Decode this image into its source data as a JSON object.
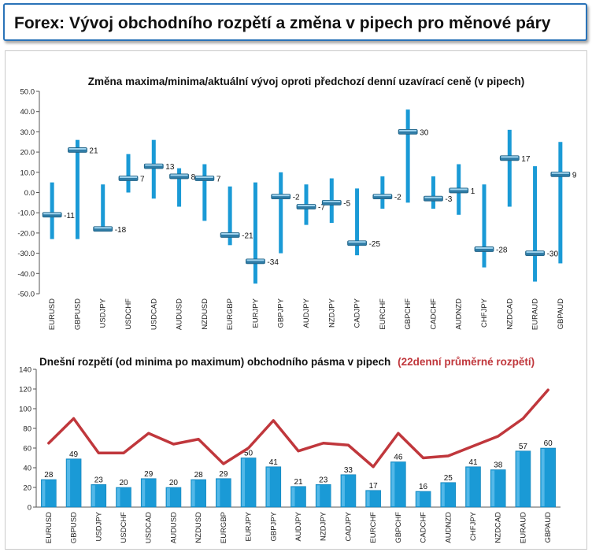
{
  "header": {
    "title": "Forex: Vývoj obchodního rozpětí a změna v pipech pro měnové páry"
  },
  "colors": {
    "bar": "#1a9ad6",
    "line": "#c0373c",
    "header_border": "#2a73b8"
  },
  "chart_data": [
    {
      "type": "range",
      "title": "Změna maxima/minima/aktuální vývoj oproti předchozí denní uzavírací ceně (v pipech)",
      "ylim": [
        -50,
        50
      ],
      "yticks": [
        "50.0",
        "40.0",
        "30.0",
        "20.0",
        "10.0",
        "0.0",
        "-10.0",
        "-20.0",
        "-30.0",
        "-40.0",
        "-50.0"
      ],
      "categories": [
        "EURUSD",
        "GBPUSD",
        "USDJPY",
        "USDCHF",
        "USDCAD",
        "AUDUSD",
        "NZDUSD",
        "EURGBP",
        "EURJPY",
        "GBPJPY",
        "AUDJPY",
        "NZDJPY",
        "CADJPY",
        "EURCHF",
        "GBPCHF",
        "CADCHF",
        "AUDNZD",
        "CHFJPY",
        "NZDCAD",
        "EURAUD",
        "GBPAUD"
      ],
      "high": [
        5,
        26,
        4,
        19,
        26,
        12,
        14,
        3,
        5,
        10,
        4,
        7,
        2,
        8,
        41,
        8,
        14,
        4,
        31,
        13,
        25
      ],
      "low": [
        -23,
        -23,
        -18,
        0,
        -3,
        -7,
        -14,
        -26,
        -45,
        -30,
        -16,
        -15,
        -31,
        -8,
        -5,
        -8,
        -11,
        -37,
        -7,
        -44,
        -35
      ],
      "current": [
        -11,
        21,
        -18,
        7,
        13,
        8,
        7,
        -21,
        -34,
        -2,
        -7,
        -5,
        -25,
        -2,
        30,
        -3,
        1,
        -28,
        17,
        -30,
        9
      ],
      "current_labels": [
        "-11",
        "21",
        "-18",
        "7",
        "13",
        "8",
        "7",
        "-21",
        "-34",
        "-2",
        "-7",
        "-5",
        "-25",
        "-2",
        "30",
        "-3",
        "1",
        "-28",
        "17",
        "-30",
        "9"
      ]
    },
    {
      "type": "bar",
      "title": "Dnešní rozpětí (od minima po maximum) obchodního pásma v pipech",
      "line_title": "(22denní průměrné rozpětí)",
      "ylim": [
        0,
        140
      ],
      "yticks": [
        "140",
        "120",
        "100",
        "80",
        "60",
        "40",
        "20",
        "0"
      ],
      "categories": [
        "EURUSD",
        "GBPUSD",
        "USDJPY",
        "USDCHF",
        "USDCAD",
        "AUDUSD",
        "NZDUSD",
        "EURGBP",
        "EURJPY",
        "GBPJPY",
        "AUDJPY",
        "NZDJPY",
        "CADJPY",
        "EURCHF",
        "GBPCHF",
        "CADCHF",
        "AUDNZD",
        "CHFJPY",
        "NZDCAD",
        "EURAUD",
        "GBPAUD"
      ],
      "values": [
        28,
        49,
        23,
        20,
        29,
        20,
        28,
        29,
        50,
        41,
        21,
        23,
        33,
        17,
        46,
        16,
        25,
        41,
        38,
        57,
        60
      ],
      "value_labels": [
        "28",
        "49",
        "23",
        "20",
        "29",
        "20",
        "28",
        "29",
        "50",
        "41",
        "21",
        "23",
        "33",
        "17",
        "46",
        "16",
        "25",
        "41",
        "38",
        "57",
        "60"
      ],
      "average_22d": [
        65,
        90,
        55,
        55,
        75,
        64,
        69,
        44,
        60,
        88,
        57,
        65,
        63,
        41,
        75,
        50,
        52,
        62,
        72,
        90,
        119
      ]
    }
  ]
}
